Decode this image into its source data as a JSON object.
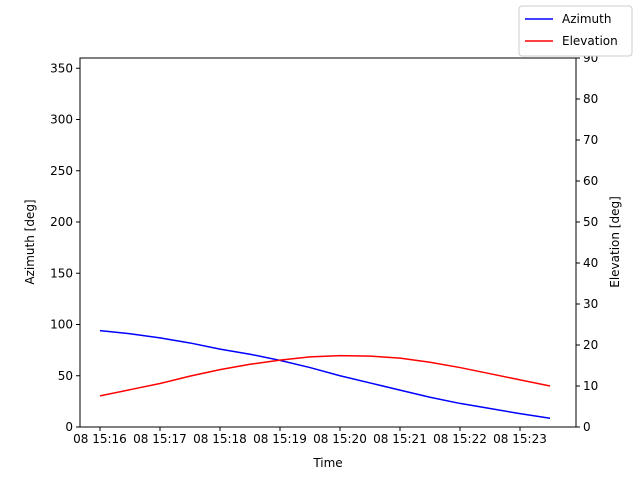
{
  "chart_data": {
    "type": "line",
    "x": [
      0,
      0.5,
      1,
      1.5,
      2,
      2.5,
      3,
      3.5,
      4,
      4.5,
      5,
      5.5,
      6,
      6.5,
      7,
      7.5
    ],
    "series": [
      {
        "name": "Azimuth",
        "color": "#0000ff",
        "values": [
          94,
          91,
          87,
          82,
          76,
          71,
          65,
          58,
          50,
          43,
          36,
          29,
          23,
          18,
          13,
          8.5
        ]
      },
      {
        "name": "Elevation",
        "color": "#ff0000",
        "axis": "y2",
        "values": [
          7.6,
          9.1,
          10.6,
          12.4,
          14.0,
          15.3,
          16.3,
          17.1,
          17.4,
          17.3,
          16.8,
          15.8,
          14.5,
          13.0,
          11.5,
          10.0
        ]
      }
    ],
    "xlabel": "Time",
    "ylabel": "Azimuth [deg]",
    "y2label": "Elevation [deg]",
    "xlim": [
      -0.333,
      7.933
    ],
    "xticks": [
      {
        "value": 0,
        "label": "08 15:16"
      },
      {
        "value": 1,
        "label": "08 15:17"
      },
      {
        "value": 2,
        "label": "08 15:18"
      },
      {
        "value": 3,
        "label": "08 15:19"
      },
      {
        "value": 4,
        "label": "08 15:20"
      },
      {
        "value": 5,
        "label": "08 15:21"
      },
      {
        "value": 6,
        "label": "08 15:22"
      },
      {
        "value": 7,
        "label": "08 15:23"
      }
    ],
    "ylim": [
      0,
      360
    ],
    "yticks": [
      0,
      50,
      100,
      150,
      200,
      250,
      300,
      350
    ],
    "y2lim": [
      0,
      90
    ],
    "y2ticks": [
      0,
      10,
      20,
      30,
      40,
      50,
      60,
      70,
      80,
      90
    ],
    "legend": "upper right",
    "grid": false
  }
}
